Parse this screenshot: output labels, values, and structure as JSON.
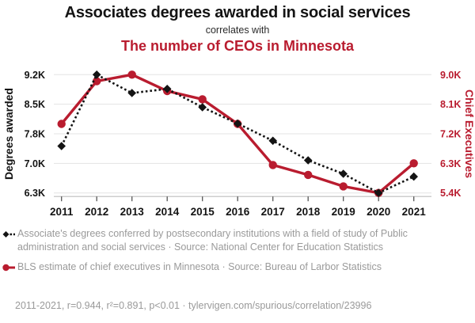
{
  "header": {
    "title": "Associates degrees awarded in social services",
    "connector": "correlates with",
    "subtitle": "The number of CEOs in Minnesota"
  },
  "colors": {
    "accent": "#b91c2f",
    "series_black": "#141414",
    "muted_text": "#9a9a9a",
    "gridline": "#e3e3e3",
    "axis_line": "#bdbdbd",
    "tick_mark": "#555555"
  },
  "chart_data": {
    "type": "line",
    "x": [
      2011,
      2012,
      2013,
      2014,
      2015,
      2016,
      2017,
      2018,
      2019,
      2020,
      2021
    ],
    "series": [
      {
        "id": "degrees",
        "name": "Associate's degrees conferred by postsecondary institutions with a field of study of Public administration and social services",
        "axis": "left",
        "color": "#141414",
        "style": "dashed",
        "marker": "diamond",
        "values": [
          7450,
          9200,
          8750,
          8850,
          8400,
          8000,
          7580,
          7100,
          6770,
          6300,
          6700
        ]
      },
      {
        "id": "ceos",
        "name": "BLS estimate of chief executives in Minnesota",
        "axis": "right",
        "color": "#b91c2f",
        "style": "solid",
        "marker": "circle",
        "values": [
          7500,
          8800,
          9000,
          8500,
          8250,
          7500,
          6250,
          5950,
          5600,
          5400,
          6300
        ]
      }
    ],
    "left_axis": {
      "label": "Degrees awarded",
      "ticks": [
        "9.2K",
        "8.5K",
        "7.8K",
        "7.0K",
        "6.3K"
      ],
      "tick_values": [
        9200,
        8500,
        7800,
        7000,
        6300
      ]
    },
    "right_axis": {
      "label": "Chief Executives",
      "ticks": [
        "9.0K",
        "8.1K",
        "7.2K",
        "6.3K",
        "5.4K"
      ],
      "tick_values": [
        9000,
        8100,
        7200,
        6300,
        5400
      ]
    },
    "grid": true,
    "legend_position": "bottom"
  },
  "legend": {
    "items": [
      {
        "text": "Associate's degrees conferred by postsecondary institutions with a field of study of Public administration and social services · Source: National Center for Education Statistics"
      },
      {
        "text": "BLS estimate of chief executives in Minnesota · Source: Bureau of Larbor Statistics"
      }
    ]
  },
  "footer": {
    "text": "2011-2021, r=0.944, r²=0.891, p<0.01 · tylervigen.com/spurious/correlation/23996"
  }
}
